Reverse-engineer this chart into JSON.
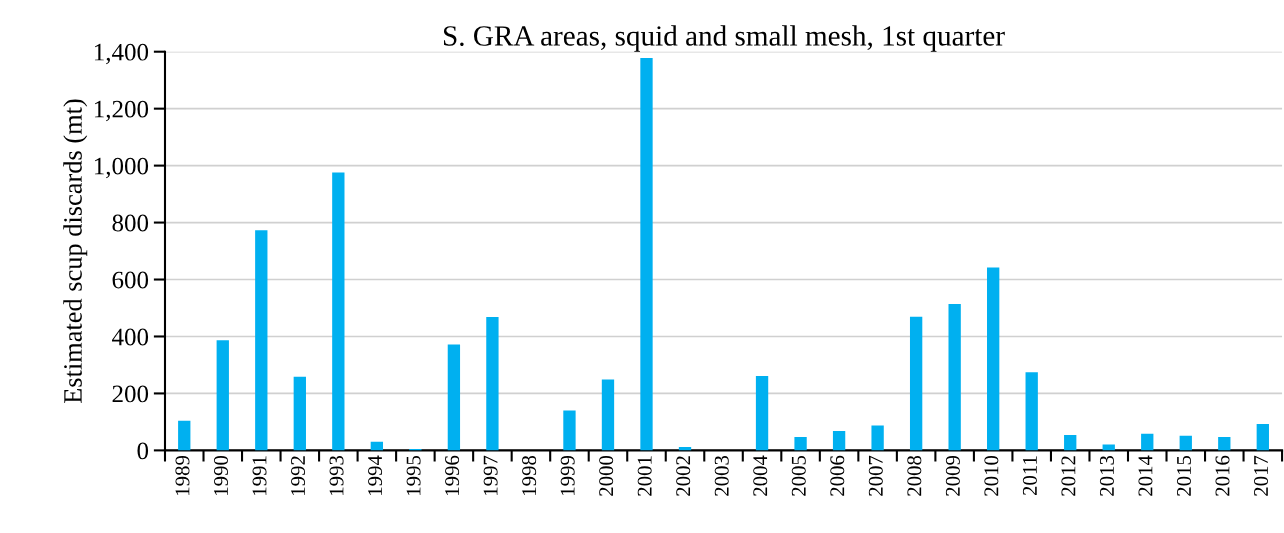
{
  "chart_data": {
    "type": "bar",
    "title": "S. GRA areas, squid and small mesh, 1st quarter",
    "ylabel": "Estimated scup discards (mt)",
    "categories": [
      "1989",
      "1990",
      "1991",
      "1992",
      "1993",
      "1994",
      "1995",
      "1996",
      "1997",
      "1998",
      "1999",
      "2000",
      "2001",
      "2002",
      "2003",
      "2004",
      "2005",
      "2006",
      "2007",
      "2008",
      "2009",
      "2010",
      "2011",
      "2012",
      "2013",
      "2014",
      "2015",
      "2016",
      "2017"
    ],
    "values": [
      104,
      387,
      773,
      259,
      976,
      30,
      5,
      372,
      468,
      0,
      140,
      249,
      1378,
      12,
      0,
      261,
      47,
      68,
      87,
      469,
      514,
      642,
      274,
      54,
      21,
      58,
      51,
      47,
      93
    ],
    "color": "#00b0f0",
    "ylim": [
      0,
      1400
    ],
    "yticks": [
      0,
      {
        "value": 200,
        "label": "200"
      },
      {
        "value": 400,
        "label": "400"
      },
      {
        "value": 600,
        "label": "600"
      },
      {
        "value": 800,
        "label": "800"
      },
      {
        "value": 1000,
        "label": "1,000"
      },
      {
        "value": 1200,
        "label": "1,200"
      },
      {
        "value": 1400,
        "label": "1,400"
      }
    ],
    "grid": "y",
    "legend": false
  }
}
